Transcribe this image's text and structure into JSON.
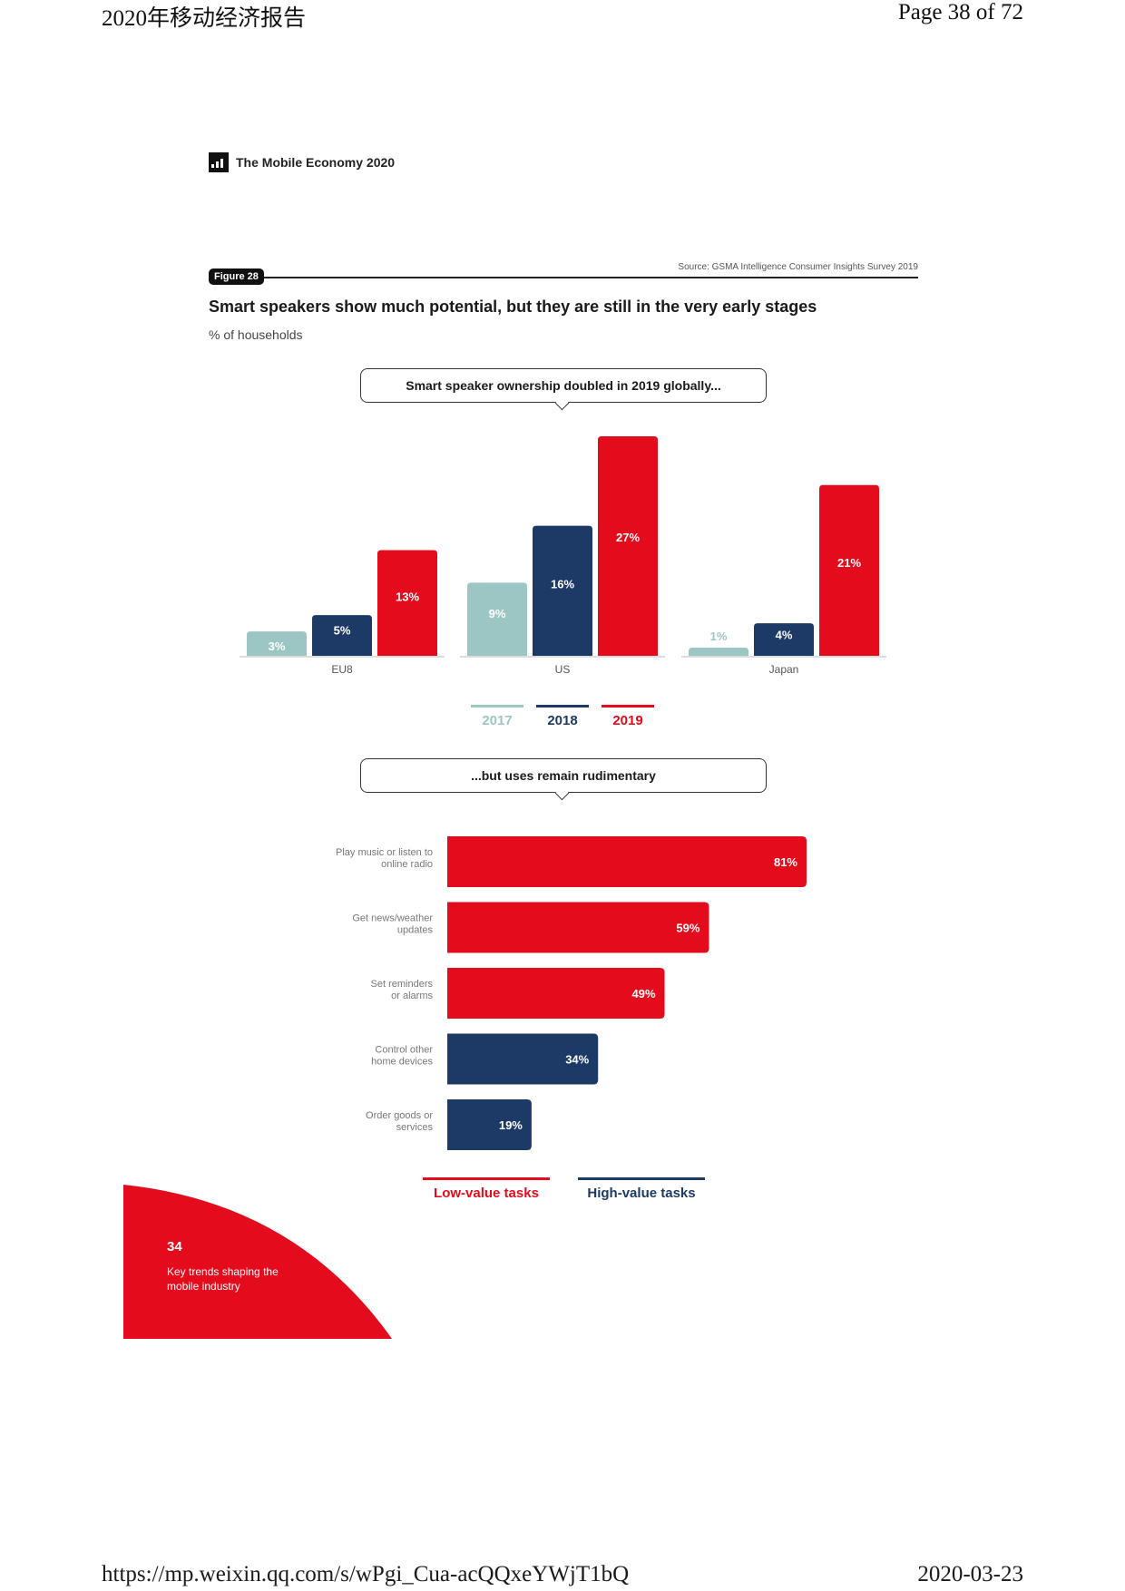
{
  "header": {
    "doc_title": "2020年移动经济报告",
    "page": "Page 38 of 72"
  },
  "brand": {
    "name": "The Mobile Economy 2020",
    "icon": "gsma-logo-icon"
  },
  "figure": {
    "badge": "Figure 28",
    "source": "Source: GSMA Intelligence Consumer Insights Survey 2019",
    "title": "Smart speakers show much potential, but they are still in the very early stages",
    "subtitle": "% of households",
    "callout_1": "Smart speaker ownership doubled in 2019 globally...",
    "callout_2": "...but uses remain rudimentary"
  },
  "colors": {
    "y2017": "#9cc6c4",
    "y2018": "#1d3a66",
    "y2019": "#e30b1c",
    "low": "#e30b1c",
    "high": "#1d3a66"
  },
  "chart_data": [
    {
      "type": "bar",
      "categories": [
        "EU8",
        "US",
        "Japan"
      ],
      "series": [
        {
          "name": "2017",
          "values": [
            3,
            9,
            1
          ],
          "labels": [
            "3%",
            "9%",
            "1%"
          ]
        },
        {
          "name": "2018",
          "values": [
            5,
            16,
            4
          ],
          "labels": [
            "5%",
            "16%",
            "4%"
          ]
        },
        {
          "name": "2019",
          "values": [
            13,
            27,
            21
          ],
          "labels": [
            "13%",
            "27%",
            "21%"
          ]
        }
      ],
      "ylim": [
        0,
        27
      ]
    },
    {
      "type": "bar",
      "orientation": "horizontal",
      "categories": [
        [
          "Play music or listen to",
          "online radio"
        ],
        [
          "Get news/weather",
          "updates"
        ],
        [
          "Set reminders",
          "or alarms"
        ],
        [
          "Control other",
          "home devices"
        ],
        [
          "Order goods or",
          "services"
        ]
      ],
      "values": [
        81,
        59,
        49,
        34,
        19
      ],
      "labels": [
        "81%",
        "59%",
        "49%",
        "34%",
        "19%"
      ],
      "task_type": [
        "low",
        "low",
        "low",
        "high",
        "high"
      ],
      "legend": [
        {
          "key": "low",
          "name": "Low-value tasks"
        },
        {
          "key": "high",
          "name": "High-value tasks"
        }
      ],
      "xlim": [
        0,
        81
      ]
    }
  ],
  "corner": {
    "number": "34",
    "text": "Key trends shaping the mobile industry"
  },
  "footer": {
    "url": "https://mp.weixin.qq.com/s/wPgi_Cua-acQQxeYWjT1bQ",
    "date": "2020-03-23"
  }
}
